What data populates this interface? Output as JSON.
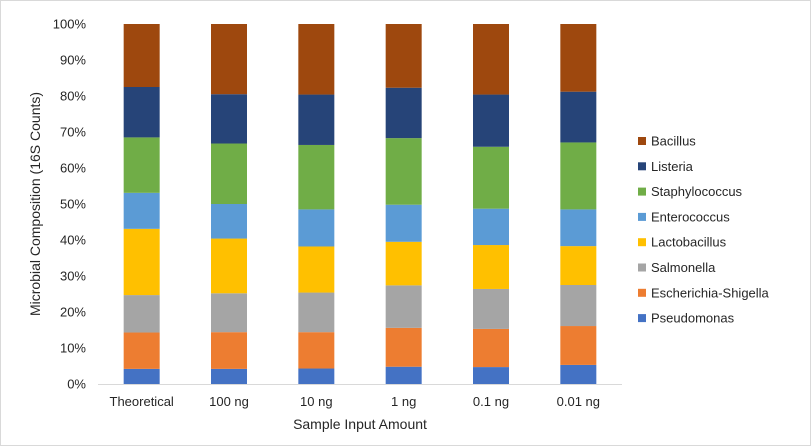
{
  "chart_data": {
    "type": "bar",
    "stacked": true,
    "percent_stacked": true,
    "title": "",
    "xlabel": "Sample Input Amount",
    "ylabel": "Microbial Composition (16S Counts)",
    "ylim": [
      0,
      100
    ],
    "y_ticks": [
      "0%",
      "10%",
      "20%",
      "30%",
      "40%",
      "50%",
      "60%",
      "70%",
      "80%",
      "90%",
      "100%"
    ],
    "grid": false,
    "legend_position": "right",
    "categories": [
      "Theoretical",
      "100 ng",
      "10 ng",
      "1 ng",
      "0.1 ng",
      "0.01 ng"
    ],
    "series": [
      {
        "name": "Pseudomonas",
        "color": "#4472C4",
        "values": [
          4.2,
          4.2,
          4.3,
          4.8,
          4.7,
          5.3
        ]
      },
      {
        "name": "Escherichia-Shigella",
        "color": "#ED7D31",
        "values": [
          10.1,
          10.2,
          10.1,
          10.8,
          10.6,
          10.8
        ]
      },
      {
        "name": "Salmonella",
        "color": "#A5A5A5",
        "values": [
          10.4,
          10.8,
          11.0,
          11.8,
          11.1,
          11.4
        ]
      },
      {
        "name": "Lactobacillus",
        "color": "#FFC000",
        "values": [
          18.4,
          15.2,
          12.8,
          12.1,
          12.2,
          10.8
        ]
      },
      {
        "name": "Enterococcus",
        "color": "#5B9BD5",
        "values": [
          10.0,
          9.6,
          10.3,
          10.3,
          10.1,
          10.2
        ]
      },
      {
        "name": "Staphylococcus",
        "color": "#70AD47",
        "values": [
          15.4,
          16.8,
          17.9,
          18.5,
          17.2,
          18.6
        ]
      },
      {
        "name": "Listeria",
        "color": "#264478",
        "values": [
          14.0,
          13.7,
          14.0,
          14.0,
          14.5,
          14.1
        ]
      },
      {
        "name": "Bacillus",
        "color": "#9E480E",
        "values": [
          17.5,
          19.5,
          19.6,
          17.7,
          19.6,
          18.8
        ]
      }
    ],
    "legend_order": [
      "Bacillus",
      "Listeria",
      "Staphylococcus",
      "Enterococcus",
      "Lactobacillus",
      "Salmonella",
      "Escherichia-Shigella",
      "Pseudomonas"
    ]
  }
}
